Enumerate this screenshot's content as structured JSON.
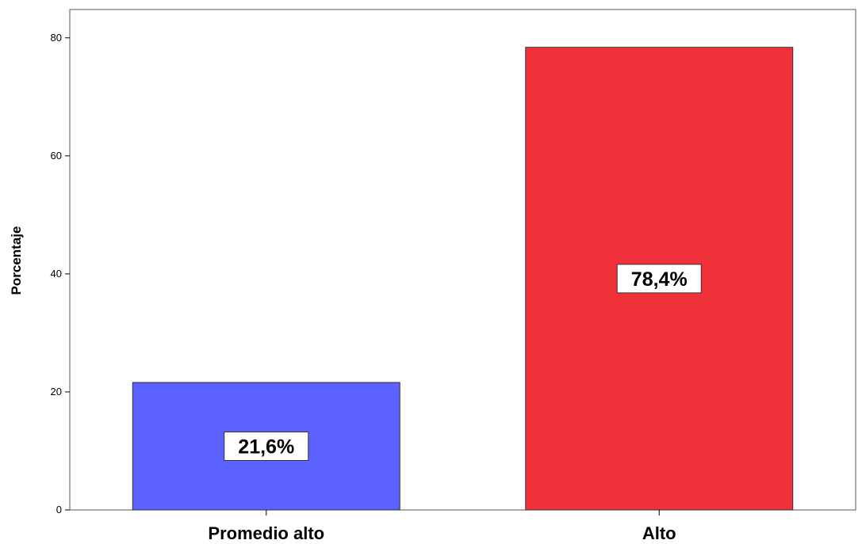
{
  "chart_data": {
    "type": "bar",
    "categories": [
      "Promedio alto",
      "Alto"
    ],
    "values": [
      21.6,
      78.4
    ],
    "data_labels": [
      "21,6%",
      "78,4%"
    ],
    "colors": [
      "#5b62ff",
      "#f0313a"
    ],
    "ylabel": "Porcentaje",
    "yticks": [
      "0",
      "20",
      "40",
      "60",
      "80"
    ],
    "ylim": [
      0,
      84.8
    ],
    "grid": false
  }
}
